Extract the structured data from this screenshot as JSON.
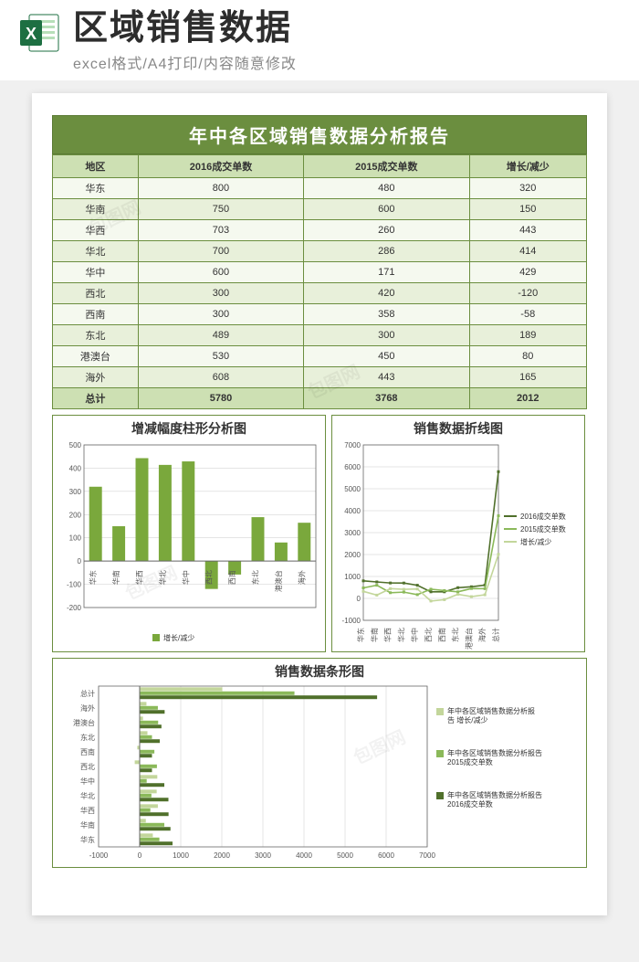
{
  "header": {
    "main_title": "区域销售数据",
    "sub_title": "excel格式/A4打印/内容随意修改",
    "icon_letter": "X"
  },
  "report": {
    "title": "年中各区域销售数据分析报告",
    "columns": [
      "地区",
      "2016成交单数",
      "2015成交单数",
      "增长/减少"
    ],
    "rows": [
      {
        "region": "华东",
        "y2016": 800,
        "y2015": 480,
        "diff": 320
      },
      {
        "region": "华南",
        "y2016": 750,
        "y2015": 600,
        "diff": 150
      },
      {
        "region": "华西",
        "y2016": 703,
        "y2015": 260,
        "diff": 443
      },
      {
        "region": "华北",
        "y2016": 700,
        "y2015": 286,
        "diff": 414
      },
      {
        "region": "华中",
        "y2016": 600,
        "y2015": 171,
        "diff": 429
      },
      {
        "region": "西北",
        "y2016": 300,
        "y2015": 420,
        "diff": -120
      },
      {
        "region": "西南",
        "y2016": 300,
        "y2015": 358,
        "diff": -58
      },
      {
        "region": "东北",
        "y2016": 489,
        "y2015": 300,
        "diff": 189
      },
      {
        "region": "港澳台",
        "y2016": 530,
        "y2015": 450,
        "diff": 80
      },
      {
        "region": "海外",
        "y2016": 608,
        "y2015": 443,
        "diff": 165
      }
    ],
    "total": {
      "region": "总计",
      "y2016": 5780,
      "y2015": 3768,
      "diff": 2012
    }
  },
  "bar_chart": {
    "title": "增减幅度柱形分析图",
    "type": "bar",
    "y_ticks": [
      -200,
      -100,
      0,
      100,
      200,
      300,
      400,
      500
    ],
    "ylim": [
      -200,
      500
    ],
    "bar_color": "#7aa83c",
    "grid_color": "#cccccc",
    "axis_color": "#666666",
    "legend": "增长/减少",
    "label_fontsize": 8
  },
  "line_chart": {
    "title": "销售数据折线图",
    "type": "line",
    "y_ticks": [
      -1000,
      0,
      1000,
      2000,
      3000,
      4000,
      5000,
      6000,
      7000
    ],
    "ylim": [
      -1000,
      7000
    ],
    "series": [
      {
        "name": "2016成交单数",
        "color": "#50702b",
        "width": 1.6
      },
      {
        "name": "2015成交单数",
        "color": "#8bb95a",
        "width": 1.6
      },
      {
        "name": "增长/减少",
        "color": "#c3d69b",
        "width": 1.6
      }
    ],
    "grid_color": "#cccccc",
    "axis_color": "#666666",
    "label_fontsize": 8
  },
  "hbar_chart": {
    "title": "销售数据条形图",
    "type": "hbar",
    "x_ticks": [
      -1000,
      0,
      1000,
      2000,
      3000,
      4000,
      5000,
      6000,
      7000
    ],
    "xlim": [
      -1000,
      7000
    ],
    "series": [
      {
        "name": "年中各区域销售数据分析报告 增长/减少",
        "color": "#c3d69b"
      },
      {
        "name": "年中各区域销售数据分析报告 2015成交单数",
        "color": "#8bb95a"
      },
      {
        "name": "年中各区域销售数据分析报告 2016成交单数",
        "color": "#50702b"
      }
    ],
    "grid_color": "#cccccc",
    "axis_color": "#666666",
    "label_fontsize": 8
  },
  "colors": {
    "theme_green_dark": "#6b8e3f",
    "theme_green_mid": "#8bb95a",
    "theme_green_light": "#cde0b3",
    "theme_green_pale": "#e8f0da",
    "excel_green": "#1d6f42"
  }
}
